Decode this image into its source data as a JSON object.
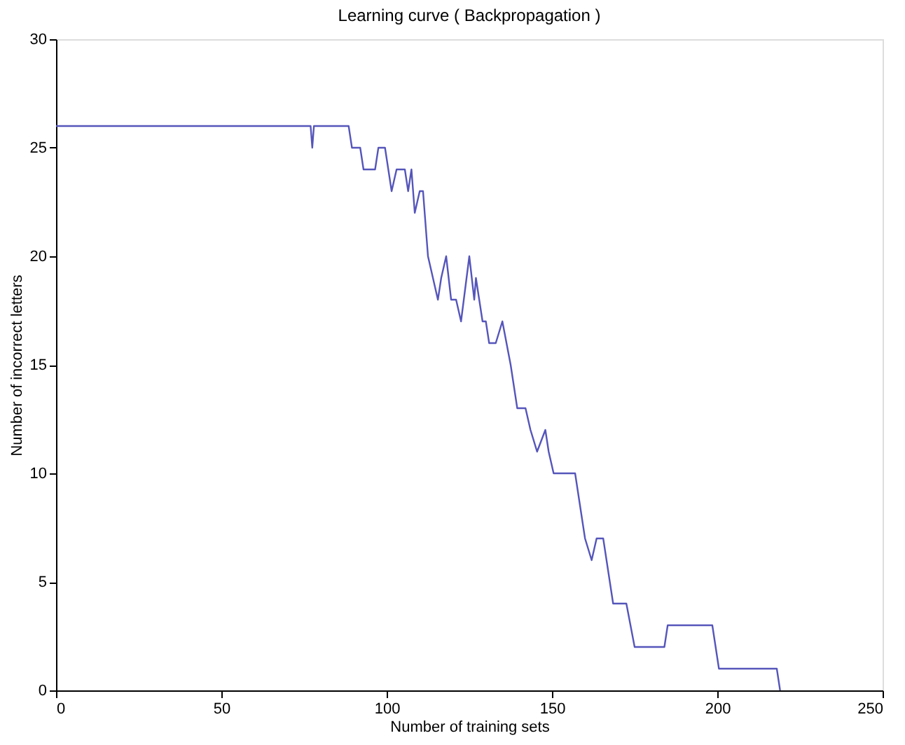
{
  "chart_data": {
    "type": "line",
    "title": "Learning curve ( Backpropagation )",
    "xlabel": "Number of training sets",
    "ylabel": "Number of incorrect letters",
    "x": [
      0,
      77,
      77.5,
      78,
      88.5,
      89.5,
      92,
      93,
      96.5,
      97.5,
      99.5,
      101.5,
      103,
      105.5,
      106.5,
      107.5,
      108.5,
      110,
      111,
      112.5,
      115.5,
      116.5,
      118,
      119.5,
      121,
      122.5,
      125,
      126.5,
      127,
      129,
      130,
      131,
      133,
      135,
      137.5,
      139.5,
      142,
      143.5,
      145.5,
      148,
      149,
      150.5,
      157,
      160,
      162,
      163.5,
      165.5,
      168.5,
      172.5,
      175,
      184,
      185,
      198.5,
      200.5,
      218,
      219
    ],
    "series": [
      {
        "color": "#5555bb",
        "values": [
          26,
          26,
          25,
          26,
          26,
          25,
          25,
          24,
          24,
          25,
          25,
          23,
          24,
          24,
          23,
          24,
          22,
          23,
          23,
          20,
          18,
          19,
          20,
          18,
          18,
          17,
          20,
          18,
          19,
          17,
          17,
          16,
          16,
          17,
          15,
          13,
          13,
          12,
          11,
          12,
          11,
          10,
          10,
          7,
          6,
          7,
          7,
          4,
          4,
          2,
          2,
          3,
          3,
          1,
          1,
          0
        ]
      }
    ],
    "xlim": [
      0,
      250
    ],
    "ylim": [
      0,
      30
    ],
    "xticks": [
      0,
      50,
      100,
      150,
      200,
      250
    ],
    "yticks": [
      0,
      5,
      10,
      15,
      20,
      25,
      30
    ],
    "grid": false,
    "legend": false,
    "marker": "none",
    "line_style": "solid"
  }
}
